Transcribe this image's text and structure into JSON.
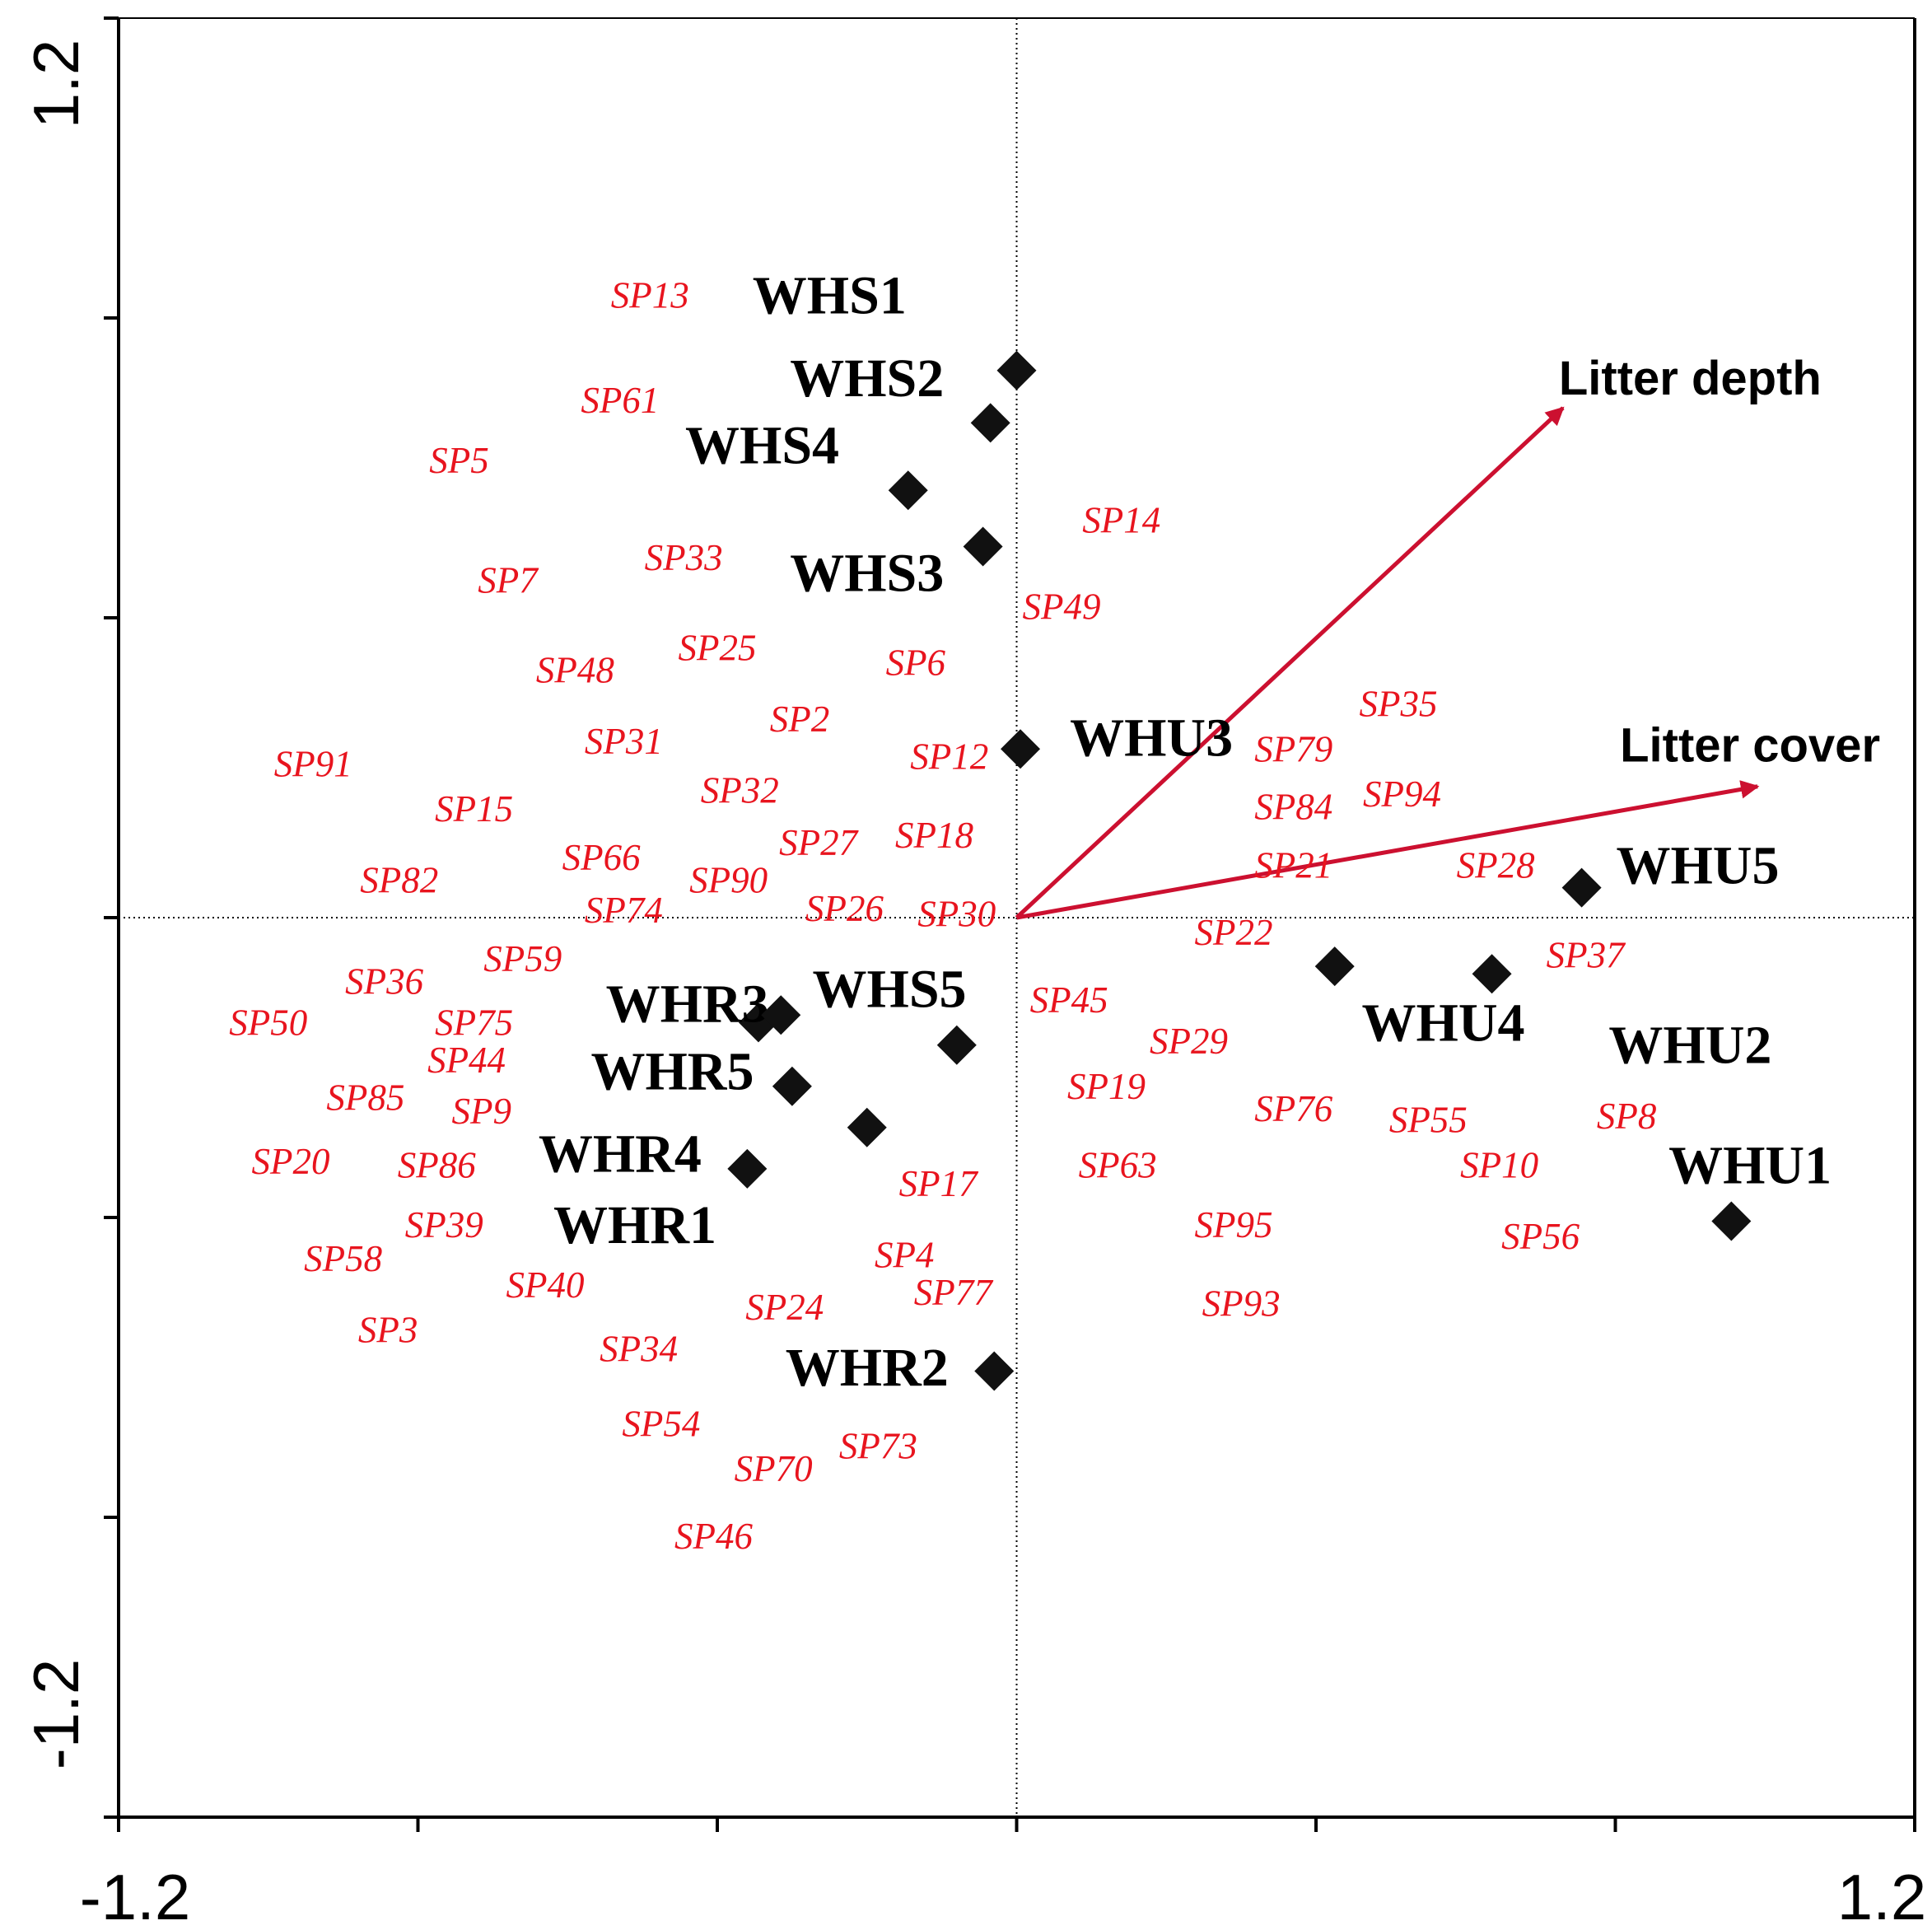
{
  "chart_data": {
    "type": "scatter",
    "title": "",
    "xlabel": "",
    "ylabel": "",
    "xlim": [
      -1.2,
      1.2
    ],
    "ylim": [
      -1.2,
      1.2
    ],
    "x_tick_labels": [
      "-1.2",
      "1.2"
    ],
    "y_tick_labels": [
      "1.2",
      "-1.2"
    ],
    "zero_lines": true,
    "colors": {
      "species": "#e8141e",
      "sites": "#111111",
      "arrows": "#cc1030",
      "axes": "#000000"
    },
    "sites": [
      {
        "label": "WHS1",
        "x": 0.0,
        "y": 0.73,
        "lx": -0.25,
        "ly": 0.83
      },
      {
        "label": "WHS2",
        "x": -0.035,
        "y": 0.66,
        "lx": -0.2,
        "ly": 0.72
      },
      {
        "label": "WHS4",
        "x": -0.145,
        "y": 0.57,
        "lx": -0.34,
        "ly": 0.63
      },
      {
        "label": "WHS3",
        "x": -0.045,
        "y": 0.495,
        "lx": -0.2,
        "ly": 0.46
      },
      {
        "label": "WHU3",
        "x": 0.005,
        "y": 0.225,
        "lx": 0.18,
        "ly": 0.24
      },
      {
        "label": "WHU5",
        "x": 0.755,
        "y": 0.04,
        "lx": 0.91,
        "ly": 0.07
      },
      {
        "label": "WHU4",
        "x": 0.425,
        "y": -0.065,
        "lx": 0.57,
        "ly": -0.14
      },
      {
        "label": "WHU2",
        "x": 0.635,
        "y": -0.075,
        "lx": 0.9,
        "ly": -0.17
      },
      {
        "label": "WHU1",
        "x": 0.955,
        "y": -0.405,
        "lx": 0.98,
        "ly": -0.33
      },
      {
        "label": "WHS5",
        "x": -0.08,
        "y": -0.17,
        "lx": -0.17,
        "ly": -0.095
      },
      {
        "label": "WHR3",
        "x": -0.345,
        "y": -0.14,
        "lx": -0.44,
        "ly": -0.115
      },
      {
        "label": "WHR5",
        "x": -0.3,
        "y": -0.225,
        "lx": -0.46,
        "ly": -0.205
      },
      {
        "label": "WHR4",
        "x": -0.36,
        "y": -0.335,
        "lx": -0.53,
        "ly": -0.315
      },
      {
        "label": "WHR1",
        "x": -0.2,
        "y": -0.28,
        "lx": -0.51,
        "ly": -0.41
      },
      {
        "label": "WHR2",
        "x": -0.03,
        "y": -0.605,
        "lx": -0.2,
        "ly": -0.6
      },
      {
        "label": "",
        "x": -0.315,
        "y": -0.13
      }
    ],
    "species": [
      {
        "label": "SP13",
        "x": -0.49,
        "y": 0.83
      },
      {
        "label": "SP61",
        "x": -0.53,
        "y": 0.69
      },
      {
        "label": "SP5",
        "x": -0.745,
        "y": 0.61
      },
      {
        "label": "SP14",
        "x": 0.14,
        "y": 0.53
      },
      {
        "label": "SP33",
        "x": -0.445,
        "y": 0.48
      },
      {
        "label": "SP7",
        "x": -0.68,
        "y": 0.45
      },
      {
        "label": "SP49",
        "x": 0.06,
        "y": 0.415
      },
      {
        "label": "SP25",
        "x": -0.4,
        "y": 0.36
      },
      {
        "label": "SP6",
        "x": -0.135,
        "y": 0.34
      },
      {
        "label": "SP48",
        "x": -0.59,
        "y": 0.33
      },
      {
        "label": "SP35",
        "x": 0.51,
        "y": 0.285
      },
      {
        "label": "SP2",
        "x": -0.29,
        "y": 0.265
      },
      {
        "label": "SP31",
        "x": -0.525,
        "y": 0.235
      },
      {
        "label": "SP79",
        "x": 0.37,
        "y": 0.225
      },
      {
        "label": "SP12",
        "x": -0.09,
        "y": 0.215
      },
      {
        "label": "SP91",
        "x": -0.94,
        "y": 0.205
      },
      {
        "label": "SP32",
        "x": -0.37,
        "y": 0.17
      },
      {
        "label": "SP94",
        "x": 0.515,
        "y": 0.165
      },
      {
        "label": "SP84",
        "x": 0.37,
        "y": 0.148
      },
      {
        "label": "SP15",
        "x": -0.725,
        "y": 0.145
      },
      {
        "label": "SP18",
        "x": -0.11,
        "y": 0.11
      },
      {
        "label": "SP27",
        "x": -0.265,
        "y": 0.1
      },
      {
        "label": "SP66",
        "x": -0.555,
        "y": 0.08
      },
      {
        "label": "SP21",
        "x": 0.37,
        "y": 0.07
      },
      {
        "label": "SP28",
        "x": 0.64,
        "y": 0.07
      },
      {
        "label": "SP82",
        "x": -0.825,
        "y": 0.05
      },
      {
        "label": "SP90",
        "x": -0.385,
        "y": 0.05
      },
      {
        "label": "SP26",
        "x": -0.23,
        "y": 0.012
      },
      {
        "label": "SP74",
        "x": -0.525,
        "y": 0.01
      },
      {
        "label": "SP30",
        "x": -0.08,
        "y": 0.005
      },
      {
        "label": "SP22",
        "x": 0.29,
        "y": -0.02
      },
      {
        "label": "SP59",
        "x": -0.66,
        "y": -0.055
      },
      {
        "label": "SP37",
        "x": 0.76,
        "y": -0.05
      },
      {
        "label": "SP36",
        "x": -0.845,
        "y": -0.085
      },
      {
        "label": "SP45",
        "x": 0.07,
        "y": -0.11
      },
      {
        "label": "SP75",
        "x": -0.725,
        "y": -0.14
      },
      {
        "label": "SP50",
        "x": -1.0,
        "y": -0.14
      },
      {
        "label": "SP29",
        "x": 0.23,
        "y": -0.165
      },
      {
        "label": "SP44",
        "x": -0.735,
        "y": -0.19
      },
      {
        "label": "SP19",
        "x": 0.12,
        "y": -0.225
      },
      {
        "label": "SP85",
        "x": -0.87,
        "y": -0.24
      },
      {
        "label": "SP9",
        "x": -0.715,
        "y": -0.258
      },
      {
        "label": "SP76",
        "x": 0.37,
        "y": -0.255
      },
      {
        "label": "SP55",
        "x": 0.55,
        "y": -0.27
      },
      {
        "label": "SP8",
        "x": 0.815,
        "y": -0.265
      },
      {
        "label": "SP20",
        "x": -0.97,
        "y": -0.325
      },
      {
        "label": "SP86",
        "x": -0.775,
        "y": -0.33
      },
      {
        "label": "SP63",
        "x": 0.135,
        "y": -0.33
      },
      {
        "label": "SP10",
        "x": 0.645,
        "y": -0.33
      },
      {
        "label": "SP17",
        "x": -0.105,
        "y": -0.355
      },
      {
        "label": "SP95",
        "x": 0.29,
        "y": -0.41
      },
      {
        "label": "SP39",
        "x": -0.765,
        "y": -0.41
      },
      {
        "label": "SP56",
        "x": 0.7,
        "y": -0.425
      },
      {
        "label": "SP58",
        "x": -0.9,
        "y": -0.455
      },
      {
        "label": "SP4",
        "x": -0.15,
        "y": -0.45
      },
      {
        "label": "SP40",
        "x": -0.63,
        "y": -0.49
      },
      {
        "label": "SP77",
        "x": -0.085,
        "y": -0.5
      },
      {
        "label": "SP93",
        "x": 0.3,
        "y": -0.515
      },
      {
        "label": "SP24",
        "x": -0.31,
        "y": -0.52
      },
      {
        "label": "SP3",
        "x": -0.84,
        "y": -0.55
      },
      {
        "label": "SP34",
        "x": -0.505,
        "y": -0.575
      },
      {
        "label": "SP54",
        "x": -0.475,
        "y": -0.675
      },
      {
        "label": "SP73",
        "x": -0.185,
        "y": -0.705
      },
      {
        "label": "SP70",
        "x": -0.325,
        "y": -0.735
      },
      {
        "label": "SP46",
        "x": -0.405,
        "y": -0.825
      }
    ],
    "arrows": [
      {
        "label": "Litter depth",
        "x": 0.73,
        "y": 0.68,
        "lx": 0.9,
        "ly": 0.72
      },
      {
        "label": "Litter cover",
        "x": 0.99,
        "y": 0.175,
        "lx": 0.98,
        "ly": 0.23
      }
    ]
  }
}
